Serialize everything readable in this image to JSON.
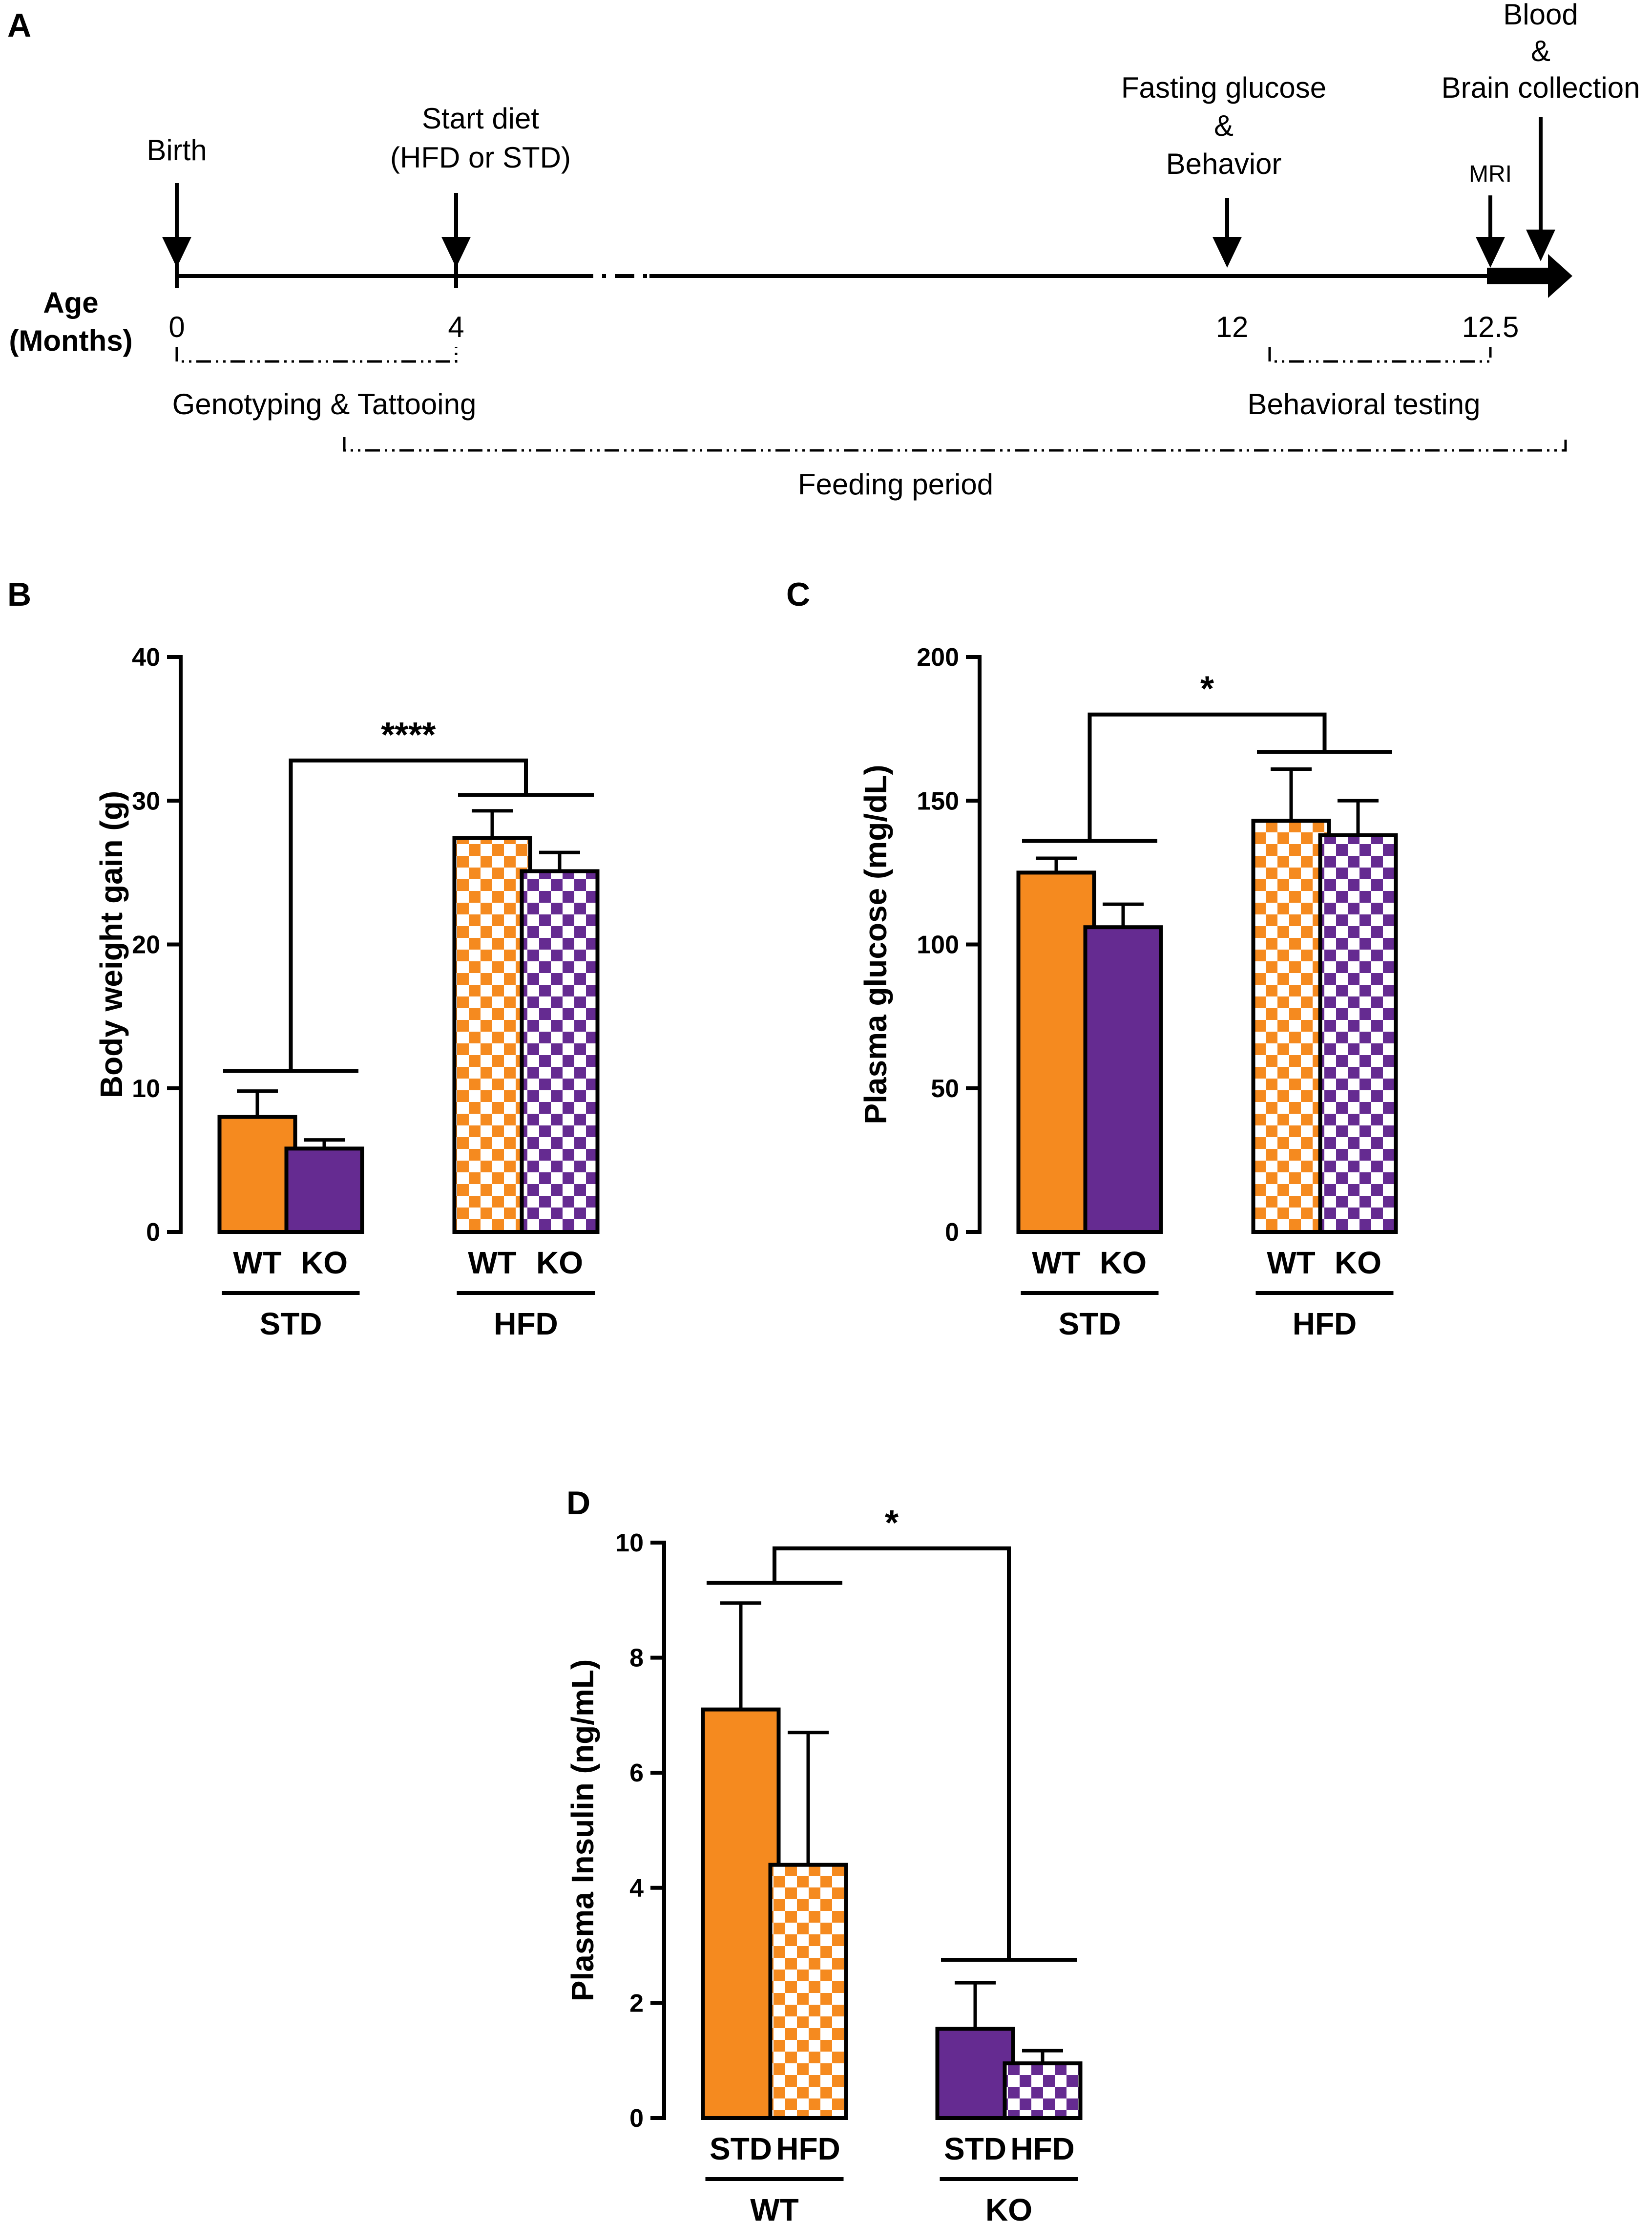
{
  "colors": {
    "orange": "#f58a1f",
    "purple": "#652b91",
    "black": "#000000",
    "white": "#ffffff"
  },
  "panels": {
    "A": {
      "letter": "A",
      "axis_label_1": "Age",
      "axis_label_2": "(Months)",
      "events": [
        {
          "lines": [
            "Birth"
          ],
          "month": "0"
        },
        {
          "lines": [
            "Start diet",
            "(HFD or STD)"
          ],
          "month": "4"
        },
        {
          "lines": [
            "Fasting glucose",
            "&",
            "Behavior"
          ],
          "month": "12"
        },
        {
          "lines": [
            "MRI"
          ],
          "month": "12.5"
        },
        {
          "lines": [
            "Blood",
            "&",
            "Brain collection"
          ],
          "month": ""
        }
      ],
      "periods": [
        {
          "label": "Genotyping & Tattooing"
        },
        {
          "label": "Behavioral testing"
        },
        {
          "label": "Feeding period"
        }
      ]
    },
    "B": {
      "letter": "B"
    },
    "C": {
      "letter": "C"
    },
    "D": {
      "letter": "D"
    }
  },
  "chart_data": [
    {
      "panel": "B",
      "type": "bar",
      "ylabel": "Body weight gain (g)",
      "ylim": [
        0,
        40
      ],
      "yticks": [
        0,
        10,
        20,
        30,
        40
      ],
      "categories": [
        "WT",
        "KO",
        "WT",
        "KO"
      ],
      "groups": [
        {
          "label": "STD",
          "members": [
            0,
            1
          ]
        },
        {
          "label": "HFD",
          "members": [
            2,
            3
          ]
        }
      ],
      "values": [
        8.0,
        5.8,
        27.4,
        25.1
      ],
      "errors": [
        1.8,
        0.6,
        1.9,
        1.3
      ],
      "colors": [
        "orange",
        "purple",
        "orange",
        "purple"
      ],
      "patterns": [
        "solid",
        "solid",
        "checker",
        "checker"
      ],
      "significance": {
        "label": "****",
        "left_y": 11.2,
        "right_y": 30.4,
        "top_y": 32.8
      }
    },
    {
      "panel": "C",
      "type": "bar",
      "ylabel": "Plasma glucose (mg/dL)",
      "ylim": [
        0,
        200
      ],
      "yticks": [
        0,
        50,
        100,
        150,
        200
      ],
      "categories": [
        "WT",
        "KO",
        "WT",
        "KO"
      ],
      "groups": [
        {
          "label": "STD",
          "members": [
            0,
            1
          ]
        },
        {
          "label": "HFD",
          "members": [
            2,
            3
          ]
        }
      ],
      "values": [
        125,
        106,
        143,
        138
      ],
      "errors": [
        5,
        8,
        18,
        12
      ],
      "colors": [
        "orange",
        "purple",
        "orange",
        "purple"
      ],
      "patterns": [
        "solid",
        "solid",
        "checker",
        "checker"
      ],
      "significance": {
        "label": "*",
        "left_y": 136,
        "right_y": 167,
        "top_y": 180
      }
    },
    {
      "panel": "D",
      "type": "bar",
      "ylabel": "Plasma Insulin (ng/mL)",
      "ylim": [
        0,
        10
      ],
      "yticks": [
        0,
        2,
        4,
        6,
        8,
        10
      ],
      "categories": [
        "STD",
        "HFD",
        "STD",
        "HFD"
      ],
      "groups": [
        {
          "label": "WT",
          "members": [
            0,
            1
          ]
        },
        {
          "label": "KO",
          "members": [
            2,
            3
          ]
        }
      ],
      "values": [
        7.1,
        4.4,
        1.55,
        0.95
      ],
      "errors": [
        1.85,
        2.3,
        0.8,
        0.22
      ],
      "colors": [
        "orange",
        "orange",
        "purple",
        "purple"
      ],
      "patterns": [
        "solid",
        "checker",
        "solid",
        "checker"
      ],
      "significance": {
        "label": "*",
        "left_y": 9.3,
        "right_y": 2.75,
        "top_y": 9.9
      }
    }
  ]
}
